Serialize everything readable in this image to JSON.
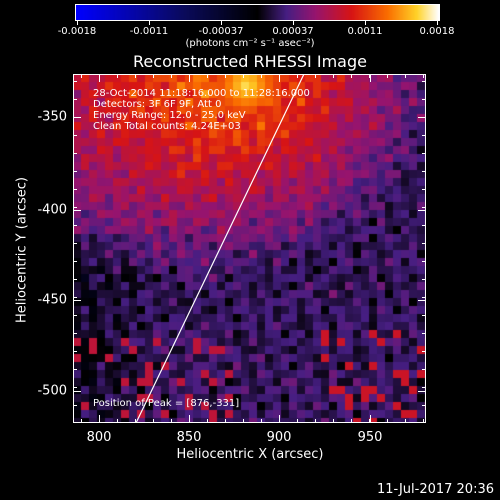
{
  "colorbar": {
    "tick_labels": [
      "-0.0018",
      "-0.0011",
      "-0.00037",
      "0.00037",
      "0.0011",
      "0.0018"
    ],
    "units_text": "(photons cm⁻² s⁻¹ asec⁻²)",
    "min": -0.0018,
    "max": 0.0018
  },
  "plot": {
    "title": "Reconstructed RHESSI Image",
    "annotations": [
      "28-Oct-2014 11:18:16.000 to 11:28:16.000",
      "Detectors: 3F 6F 9F, Att 0",
      "Energy Range: 12.0 - 25.0 keV",
      "Clean    Total counts: 4.24E+03"
    ],
    "peak_text": "Position of Peak = [876,-331]",
    "xlabel": "Heliocentric X (arcsec)",
    "ylabel": "Heliocentric Y (arcsec)",
    "x_ticks": [
      "800",
      "850",
      "900",
      "950"
    ],
    "y_ticks": [
      "-350",
      "-400",
      "-450",
      "-500"
    ],
    "xlim": [
      788,
      983
    ],
    "ylim": [
      -520,
      -328
    ]
  },
  "footer": {
    "date": "11-Jul-2017 20:36"
  }
}
